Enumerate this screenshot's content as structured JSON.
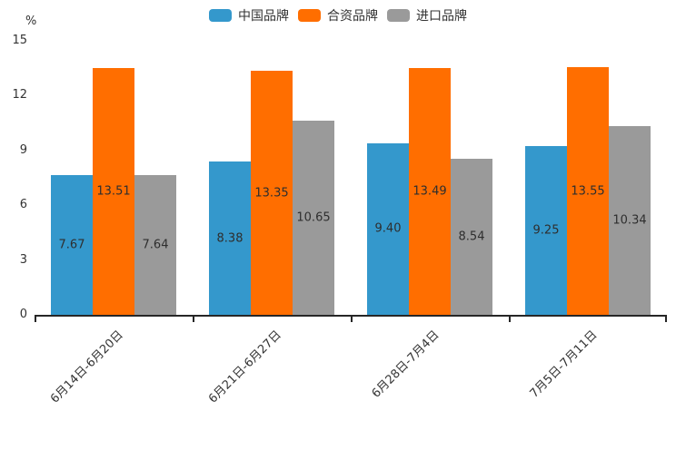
{
  "chart_data": {
    "type": "bar",
    "title": "",
    "unit_label": "%",
    "categories": [
      "6月14日-6月20日",
      "6月21日-6月27日",
      "6月28日-7月4日",
      "7月5日-7月11日"
    ],
    "series": [
      {
        "name": "中国品牌",
        "color": "#3498CC",
        "values": [
          7.67,
          8.38,
          9.4,
          9.25
        ]
      },
      {
        "name": "合资品牌",
        "color": "#FF6E00",
        "values": [
          13.51,
          13.35,
          13.49,
          13.55
        ]
      },
      {
        "name": "进口品牌",
        "color": "#9A9A9A",
        "values": [
          7.64,
          10.65,
          8.54,
          10.34
        ]
      }
    ],
    "yticks": [
      0,
      3,
      6,
      9,
      12,
      15
    ],
    "ylim": [
      0,
      15
    ],
    "value_label_decimals": 2,
    "grid": false,
    "legend_position": "top",
    "axis_color": "#262626",
    "value_label_color": "#2e2e2e"
  }
}
